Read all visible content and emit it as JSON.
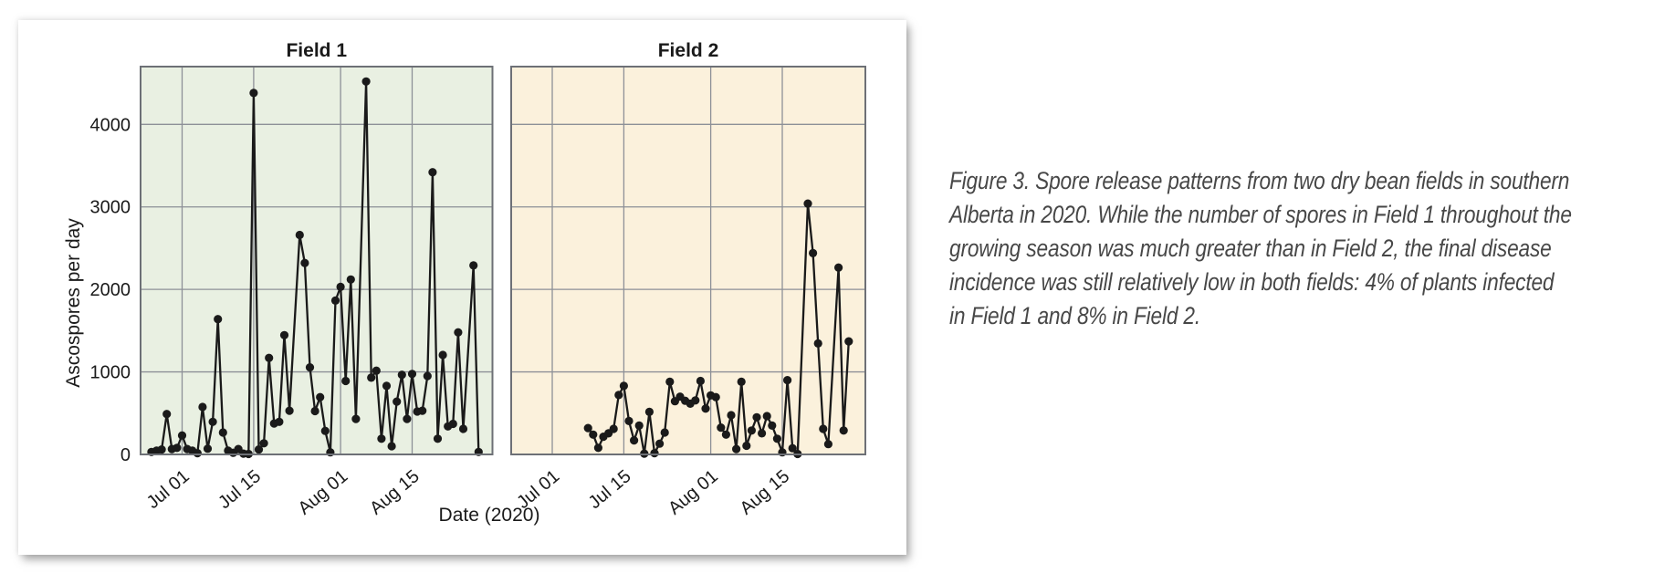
{
  "figure": {
    "y_axis_label": "Ascospores per day",
    "x_axis_label": "Date (2020)",
    "y_tick_labels": [
      "0",
      "1000",
      "2000",
      "3000",
      "4000"
    ],
    "x_tick_labels": [
      "Jul 01",
      "Jul 15",
      "Aug 01",
      "Aug 15"
    ]
  },
  "caption": {
    "lines": [
      "Figure 3. Spore release patterns from two dry bean fields in southern",
      "Alberta in 2020. While the number of spores in Field 1 throughout the",
      "growing season was much greater than in Field 2, the final disease",
      "incidence was still relatively low in both fields: 4% of plants infected",
      "in Field 1 and 8% in Field 2."
    ]
  },
  "colors": {
    "field1_panel_bg": "#e9f0e2",
    "field2_panel_bg": "#fbf1dc",
    "gridline": "#8d9097",
    "frame": "#6d7076",
    "series": "#1a1a1a",
    "caption_text": "#474747",
    "card_bg": "#ffffff"
  },
  "chart_data": [
    {
      "type": "line",
      "title": "Field 1",
      "xlabel": "Date (2020)",
      "ylabel": "Ascospores per day",
      "ylim": [
        0,
        4700
      ],
      "yticks": [
        0,
        1000,
        2000,
        3000,
        4000
      ],
      "xticks": [
        "Jul 01",
        "Jul 15",
        "Aug 01",
        "Aug 15"
      ],
      "grid": true,
      "panel_bg": "#e9f0e2",
      "marker": "circle",
      "dates": [
        "Jun 25",
        "Jun 26",
        "Jun 27",
        "Jun 28",
        "Jun 29",
        "Jun 30",
        "Jul 01",
        "Jul 02",
        "Jul 03",
        "Jul 04",
        "Jul 05",
        "Jul 06",
        "Jul 07",
        "Jul 08",
        "Jul 09",
        "Jul 10",
        "Jul 11",
        "Jul 12",
        "Jul 13",
        "Jul 14",
        "Jul 15",
        "Jul 16",
        "Jul 17",
        "Jul 18",
        "Jul 19",
        "Jul 20",
        "Jul 21",
        "Jul 22",
        "Jul 24",
        "Jul 25",
        "Jul 26",
        "Jul 27",
        "Jul 28",
        "Jul 29",
        "Jul 30",
        "Jul 31",
        "Aug 01",
        "Aug 02",
        "Aug 03",
        "Aug 04",
        "Aug 06",
        "Aug 07",
        "Aug 08",
        "Aug 09",
        "Aug 10",
        "Aug 11",
        "Aug 12",
        "Aug 13",
        "Aug 14",
        "Aug 15",
        "Aug 16",
        "Aug 17",
        "Aug 18",
        "Aug 19",
        "Aug 20",
        "Aug 21",
        "Aug 22",
        "Aug 23",
        "Aug 24",
        "Aug 25",
        "Aug 27",
        "Aug 28"
      ],
      "values": [
        30,
        45,
        60,
        490,
        65,
        80,
        230,
        65,
        45,
        15,
        575,
        70,
        395,
        1640,
        265,
        45,
        20,
        65,
        10,
        5,
        4380,
        60,
        135,
        1170,
        375,
        395,
        1445,
        530,
        2660,
        2320,
        1055,
        525,
        695,
        285,
        25,
        1865,
        2030,
        890,
        2120,
        430,
        4520,
        930,
        1015,
        190,
        830,
        100,
        640,
        965,
        430,
        975,
        520,
        530,
        950,
        3420,
        190,
        1205,
        340,
        370,
        1480,
        310,
        2290,
        30
      ]
    },
    {
      "type": "line",
      "title": "Field 2",
      "xlabel": "Date (2020)",
      "ylabel": "Ascospores per day",
      "ylim": [
        0,
        4700
      ],
      "yticks": [
        0,
        1000,
        2000,
        3000,
        4000
      ],
      "xticks": [
        "Jul 01",
        "Jul 15",
        "Aug 01",
        "Aug 15"
      ],
      "grid": true,
      "panel_bg": "#fbf1dc",
      "marker": "circle",
      "dates": [
        "Jul 08",
        "Jul 09",
        "Jul 10",
        "Jul 11",
        "Jul 12",
        "Jul 13",
        "Jul 14",
        "Jul 15",
        "Jul 16",
        "Jul 17",
        "Jul 18",
        "Jul 19",
        "Jul 20",
        "Jul 21",
        "Jul 22",
        "Jul 23",
        "Jul 24",
        "Jul 25",
        "Jul 26",
        "Jul 27",
        "Jul 28",
        "Jul 29",
        "Jul 30",
        "Jul 31",
        "Aug 01",
        "Aug 02",
        "Aug 03",
        "Aug 04",
        "Aug 05",
        "Aug 06",
        "Aug 07",
        "Aug 08",
        "Aug 09",
        "Aug 10",
        "Aug 11",
        "Aug 12",
        "Aug 13",
        "Aug 14",
        "Aug 15",
        "Aug 16",
        "Aug 17",
        "Aug 18",
        "Aug 20",
        "Aug 21",
        "Aug 22",
        "Aug 23",
        "Aug 24",
        "Aug 26",
        "Aug 27",
        "Aug 28"
      ],
      "values": [
        320,
        240,
        80,
        215,
        255,
        310,
        720,
        830,
        405,
        170,
        350,
        10,
        515,
        15,
        130,
        265,
        880,
        645,
        700,
        650,
        615,
        655,
        890,
        555,
        715,
        695,
        325,
        240,
        475,
        65,
        880,
        105,
        290,
        450,
        255,
        465,
        350,
        190,
        25,
        900,
        75,
        5,
        3040,
        2440,
        1345,
        310,
        125,
        2265,
        290,
        1370
      ]
    }
  ]
}
